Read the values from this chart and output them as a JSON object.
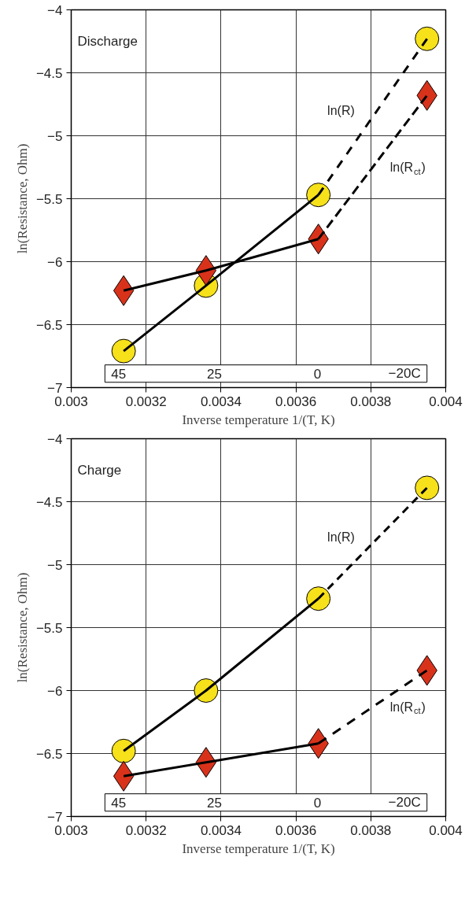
{
  "chart_data": [
    {
      "type": "scatter",
      "xlabel": "Inverse temperature 1/(T, K)",
      "ylabel": "ln(Resistance, Ohm)",
      "xlim": [
        0.003,
        0.004
      ],
      "xticks": [
        0.003,
        0.0032,
        0.0034,
        0.0036,
        0.0038,
        0.004
      ],
      "ylim": [
        -7,
        -4
      ],
      "yticks": [
        {
          "value": -7,
          "label": "−7"
        },
        {
          "value": -6.5,
          "label": "−6.5"
        },
        {
          "value": -6,
          "label": "−6"
        },
        {
          "value": -5.5,
          "label": "−5.5"
        },
        {
          "value": -5,
          "label": "−5"
        },
        {
          "value": -4.5,
          "label": "−4.5"
        },
        {
          "value": -4,
          "label": "−4"
        }
      ],
      "title": "Discharge",
      "grid": true,
      "annotations": [
        "45",
        "25",
        "0",
        "−20C"
      ],
      "series": [
        {
          "marker": "circle",
          "color": "#f6e11a",
          "x": [
            0.00314,
            0.00336,
            0.00366,
            0.00395
          ],
          "values": [
            -6.71,
            -6.19,
            -5.47,
            -4.23
          ]
        },
        {
          "marker": "diamond",
          "color": "#d9321b",
          "x": [
            0.00314,
            0.00336,
            0.00366,
            0.00395
          ],
          "values": [
            -6.23,
            -6.07,
            -5.82,
            -4.68
          ]
        },
        {
          "type": "line",
          "color": "#000000",
          "line_style": "solid",
          "x": [
            0.00314,
            0.00336,
            0.00366
          ],
          "values": [
            -6.71,
            -6.19,
            -5.47
          ]
        },
        {
          "type": "line",
          "name": "ln(R)",
          "color": "#000000",
          "line_style": "dashed",
          "x": [
            0.00366,
            0.00395
          ],
          "values": [
            -5.47,
            -4.23
          ]
        },
        {
          "type": "line",
          "color": "#000000",
          "line_style": "solid",
          "x": [
            0.00314,
            0.00336,
            0.00366
          ],
          "values": [
            -6.23,
            -6.07,
            -5.82
          ]
        },
        {
          "type": "line",
          "name": "ln(R$_{ct}$)",
          "color": "#000000",
          "line_style": "dashed",
          "x": [
            0.00366,
            0.00395
          ],
          "values": [
            -5.82,
            -4.68
          ]
        }
      ]
    },
    {
      "type": "scatter",
      "xlabel": "Inverse temperature 1/(T, K)",
      "ylabel": "ln(Resistance, Ohm)",
      "xlim": [
        0.003,
        0.004
      ],
      "xticks": [
        0.003,
        0.0032,
        0.0034,
        0.0036,
        0.0038,
        0.004
      ],
      "ylim": [
        -7,
        -4
      ],
      "yticks": [
        {
          "value": -7,
          "label": "−7"
        },
        {
          "value": -6.5,
          "label": "−6.5"
        },
        {
          "value": -6,
          "label": "−6"
        },
        {
          "value": -5.5,
          "label": "−5.5"
        },
        {
          "value": -5,
          "label": "−5"
        },
        {
          "value": -4.5,
          "label": "−4.5"
        },
        {
          "value": -4,
          "label": "−4"
        }
      ],
      "title": "Charge",
      "grid": true,
      "annotations": [
        "45",
        "25",
        "0",
        "−20C"
      ],
      "series": [
        {
          "marker": "circle",
          "color": "#f6e11a",
          "x": [
            0.00314,
            0.00336,
            0.00366,
            0.00395
          ],
          "values": [
            -6.48,
            -6.0,
            -5.27,
            -4.39
          ]
        },
        {
          "marker": "diamond",
          "color": "#d9321b",
          "x": [
            0.00314,
            0.00336,
            0.00366,
            0.00395
          ],
          "values": [
            -6.68,
            -6.57,
            -6.42,
            -5.84
          ]
        },
        {
          "type": "line",
          "color": "#000000",
          "line_style": "solid",
          "x": [
            0.00314,
            0.00336,
            0.00366
          ],
          "values": [
            -6.48,
            -6.0,
            -5.27
          ]
        },
        {
          "type": "line",
          "name": "ln(R)",
          "color": "#000000",
          "line_style": "dashed",
          "x": [
            0.00366,
            0.00395
          ],
          "values": [
            -5.27,
            -4.39
          ]
        },
        {
          "type": "line",
          "color": "#000000",
          "line_style": "solid",
          "x": [
            0.00314,
            0.00336,
            0.00366
          ],
          "values": [
            -6.68,
            -6.57,
            -6.42
          ]
        },
        {
          "type": "line",
          "name": "ln(R$_{ct}$)",
          "color": "#000000",
          "line_style": "dashed",
          "x": [
            0.00366,
            0.00395
          ],
          "values": [
            -6.42,
            -5.84
          ]
        }
      ]
    }
  ]
}
